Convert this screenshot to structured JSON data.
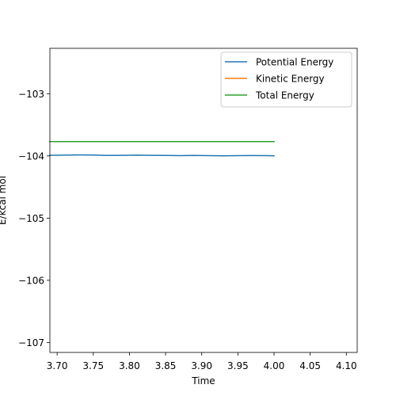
{
  "chart_data": {
    "type": "line",
    "title": "",
    "xlabel": "Time",
    "ylabel": "E/kcal mol",
    "xlim": [
      3.69,
      4.115
    ],
    "ylim": [
      -107.16,
      -102.27
    ],
    "xticks": [
      3.7,
      3.75,
      3.8,
      3.85,
      3.9,
      3.95,
      4.0,
      4.05,
      4.1
    ],
    "xtick_labels": [
      "3.70",
      "3.75",
      "3.80",
      "3.85",
      "3.90",
      "3.95",
      "4.00",
      "4.05",
      "4.10"
    ],
    "yticks": [
      -103,
      -104,
      -105,
      -106,
      -107
    ],
    "ytick_labels": [
      "−103",
      "−104",
      "−105",
      "−106",
      "−107"
    ],
    "grid": false,
    "legend_position": "top-right",
    "series": [
      {
        "name": "Potential Energy",
        "color": "#1f77b4",
        "x": [
          3.69,
          3.71,
          3.73,
          3.75,
          3.77,
          3.79,
          3.81,
          3.83,
          3.85,
          3.87,
          3.89,
          3.91,
          3.93,
          3.95,
          3.97,
          3.99,
          4.0
        ],
        "y": [
          -103.99,
          -103.988,
          -103.985,
          -103.986,
          -103.992,
          -103.991,
          -103.987,
          -103.99,
          -103.993,
          -103.996,
          -103.992,
          -103.995,
          -103.998,
          -103.996,
          -103.994,
          -103.995,
          -103.998
        ]
      },
      {
        "name": "Kinetic Energy",
        "color": "#ff7f0e",
        "x": [
          3.69,
          4.0
        ],
        "y": [
          -103.77,
          -103.77
        ]
      },
      {
        "name": "Total Energy",
        "color": "#2ca02c",
        "x": [
          3.69,
          4.0
        ],
        "y": [
          -103.77,
          -103.77
        ]
      }
    ]
  }
}
